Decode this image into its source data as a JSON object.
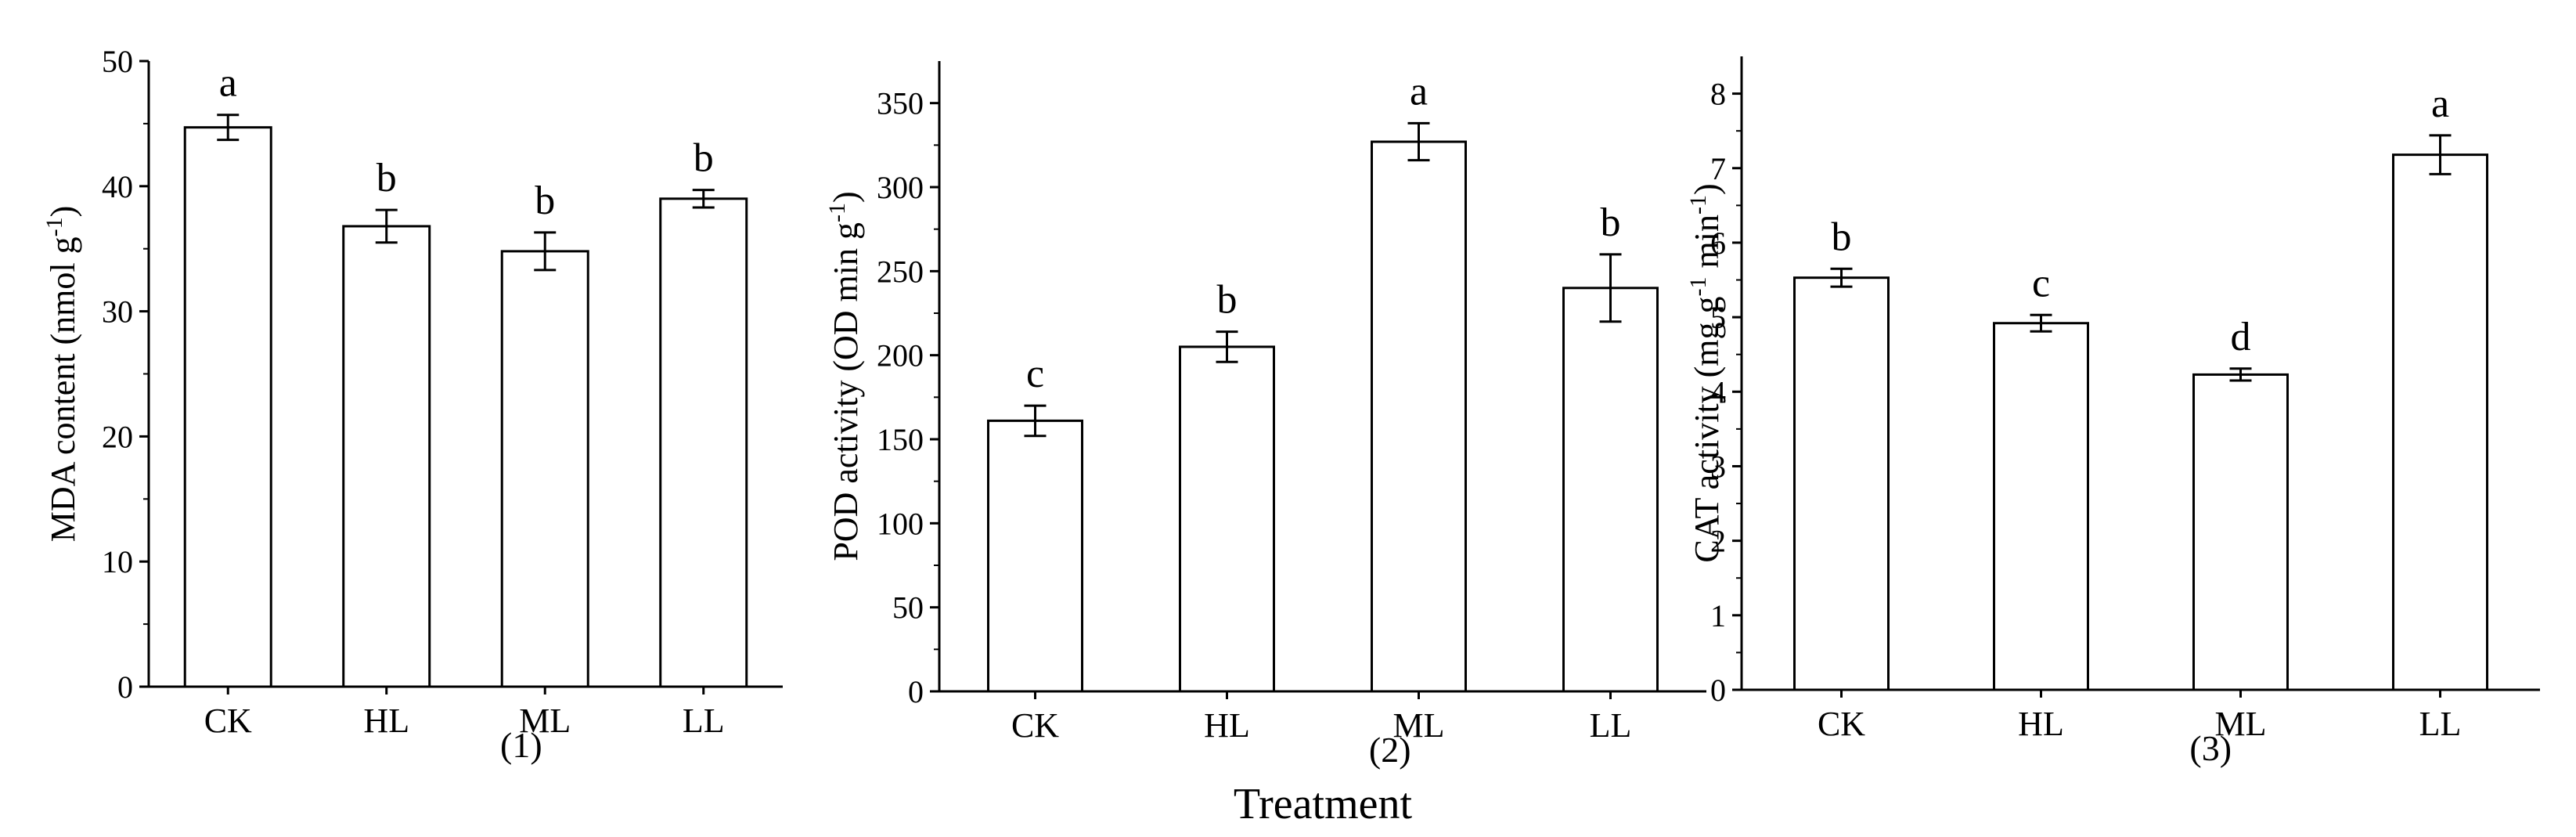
{
  "figure": {
    "xlabel": "Treatment"
  },
  "chart_data": [
    {
      "type": "bar",
      "panel_label": "(1)",
      "categories": [
        "CK",
        "HL",
        "ML",
        "LL"
      ],
      "values": [
        44.7,
        36.8,
        34.8,
        39.0
      ],
      "errors": [
        1.0,
        1.3,
        1.5,
        0.7
      ],
      "letters": [
        "a",
        "b",
        "b",
        "b"
      ],
      "ylabel": {
        "main": "MDA content (nmol g",
        "sup": "-1",
        "close": ")"
      },
      "ylim": [
        0,
        50
      ],
      "yticks": [
        0,
        10,
        20,
        30,
        40,
        50
      ],
      "grid": false
    },
    {
      "type": "bar",
      "panel_label": "(2)",
      "categories": [
        "CK",
        "HL",
        "ML",
        "LL"
      ],
      "values": [
        161,
        205,
        327,
        240
      ],
      "errors": [
        9,
        9,
        11,
        20
      ],
      "letters": [
        "c",
        "b",
        "a",
        "b"
      ],
      "ylabel": {
        "main": "POD activity (OD min g",
        "sup": "-1",
        "close": ")"
      },
      "ylim": [
        0,
        375
      ],
      "yticks": [
        0,
        50,
        100,
        150,
        200,
        250,
        300,
        350
      ],
      "grid": false
    },
    {
      "type": "bar",
      "panel_label": "(3)",
      "categories": [
        "CK",
        "HL",
        "ML",
        "LL"
      ],
      "values": [
        5.53,
        4.92,
        4.23,
        7.18
      ],
      "errors": [
        0.12,
        0.11,
        0.08,
        0.26
      ],
      "letters": [
        "b",
        "c",
        "d",
        "a"
      ],
      "ylabel": {
        "main": "CAT activity (mg g",
        "sup": "-1",
        "mid": " min",
        "sup2": "-1",
        "close": ")"
      },
      "ylim": [
        0,
        8.5
      ],
      "yticks": [
        0,
        1,
        2,
        3,
        4,
        5,
        6,
        7,
        8
      ],
      "grid": false
    }
  ]
}
